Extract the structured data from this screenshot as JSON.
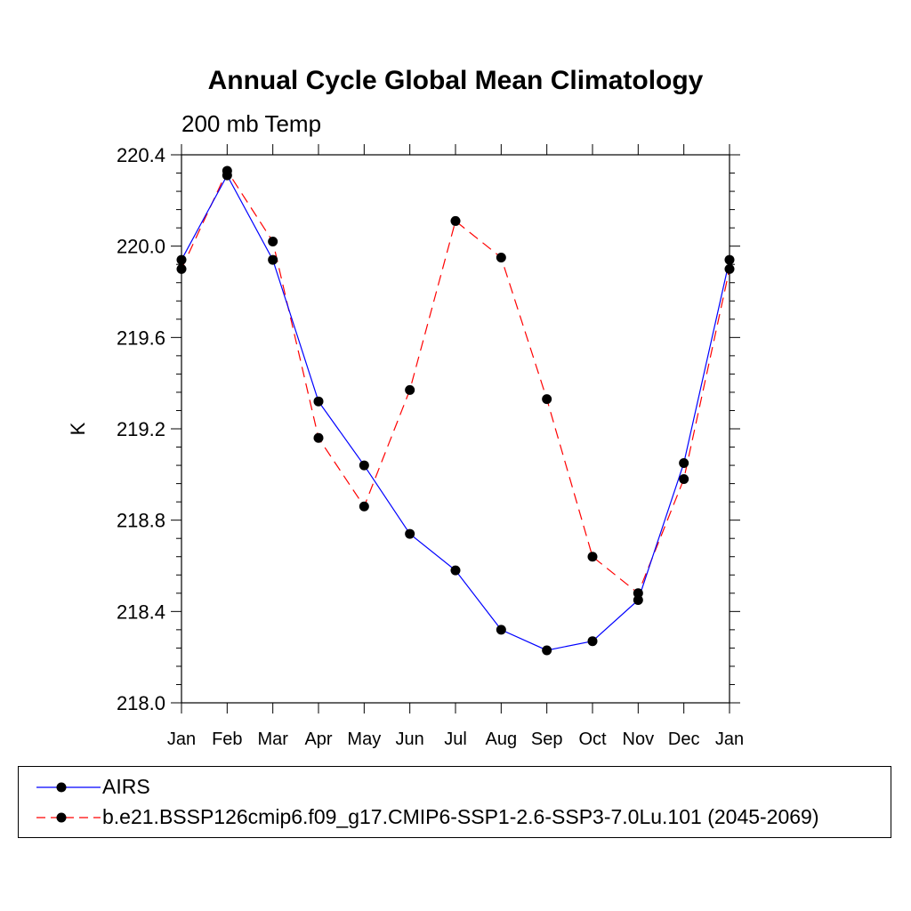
{
  "title": "Annual Cycle Global Mean Climatology",
  "subtitle": "200 mb Temp",
  "colors": {
    "airs": "#0000ff",
    "model": "#ff0000",
    "marker": "#000000"
  },
  "chart_data": {
    "type": "line",
    "title": "Annual Cycle Global Mean Climatology",
    "subtitle": "200 mb Temp",
    "xlabel": "",
    "ylabel": "K",
    "categories": [
      "Jan",
      "Feb",
      "Mar",
      "Apr",
      "May",
      "Jun",
      "Jul",
      "Aug",
      "Sep",
      "Oct",
      "Nov",
      "Dec",
      "Jan"
    ],
    "ylim": [
      218.0,
      220.4
    ],
    "yticks": [
      "218.0",
      "218.4",
      "218.8",
      "219.2",
      "219.6",
      "220.0",
      "220.4"
    ],
    "grid": false,
    "legend_position": "bottom",
    "series": [
      {
        "name": "AIRS",
        "style": "solid",
        "color": "#0000ff",
        "values": [
          219.94,
          220.31,
          219.94,
          219.32,
          219.04,
          218.74,
          218.58,
          218.32,
          218.23,
          218.27,
          218.45,
          219.05,
          219.94
        ]
      },
      {
        "name": "b.e21.BSSP126cmip6.f09_g17.CMIP6-SSP1-2.6-SSP3-7.0Lu.101 (2045-2069)",
        "style": "dashed",
        "color": "#ff0000",
        "values": [
          219.9,
          220.33,
          220.02,
          219.16,
          218.86,
          219.37,
          220.11,
          219.95,
          219.33,
          218.64,
          218.48,
          218.98,
          219.9
        ]
      }
    ]
  }
}
